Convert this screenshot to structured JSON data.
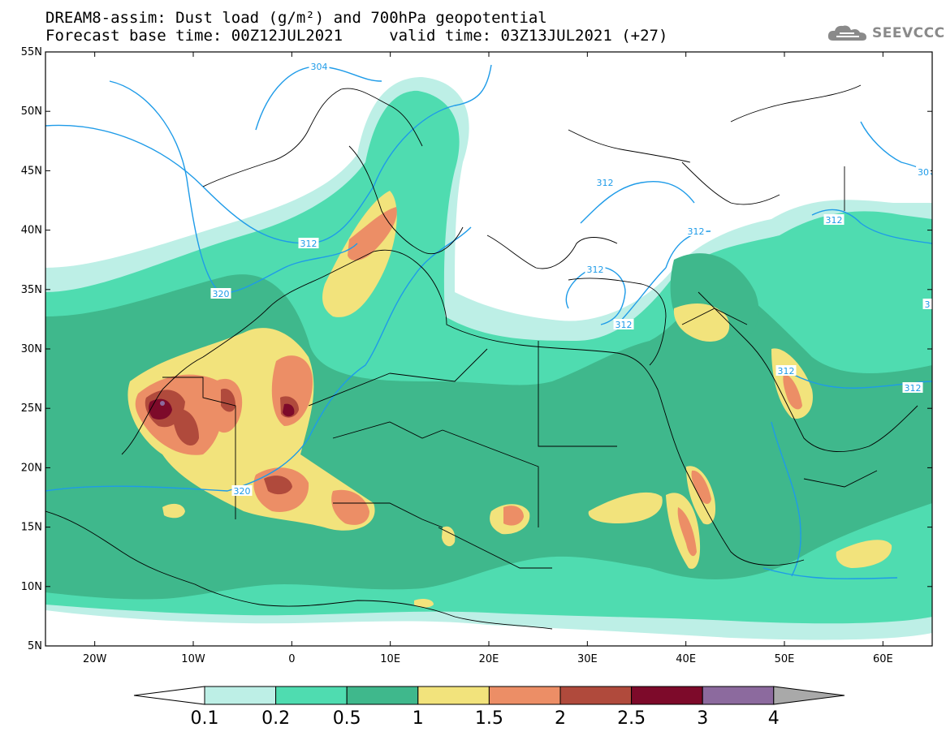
{
  "header": {
    "line1": "DREAM8-assim: Dust load (g/m²) and 700hPa geopotential",
    "line2": "Forecast base time: 00Z12JUL2021     valid time: 03Z13JUL2021 (+27)"
  },
  "logo": {
    "text": "SEEVCCC",
    "icon": "cloud-icon"
  },
  "axes": {
    "lat_labels": [
      "55N",
      "50N",
      "45N",
      "40N",
      "35N",
      "30N",
      "25N",
      "20N",
      "15N",
      "10N",
      "5N"
    ],
    "lon_labels": [
      "20W",
      "10W",
      "0",
      "10E",
      "20E",
      "30E",
      "40E",
      "50E",
      "60E"
    ],
    "lat_range": [
      5,
      55
    ],
    "lon_range": [
      -25,
      65
    ]
  },
  "contour_labels": [
    "304",
    "312",
    "312",
    "312",
    "312",
    "312",
    "312",
    "312",
    "312",
    "320",
    "320",
    "30",
    "3"
  ],
  "colorbar": {
    "labels": [
      "0.1",
      "0.2",
      "0.5",
      "1",
      "1.5",
      "2",
      "2.5",
      "3",
      "4"
    ],
    "colors": [
      "#bdefe6",
      "#4fdcb0",
      "#3fb88c",
      "#f2e37c",
      "#ec8e66",
      "#b04a3c",
      "#7d0a2a",
      "#8c6a9e",
      "#a9a9a9"
    ]
  },
  "palette": {
    "land_bg": "#ffffff",
    "contour": "#1e9be8",
    "borders": "#000000"
  }
}
